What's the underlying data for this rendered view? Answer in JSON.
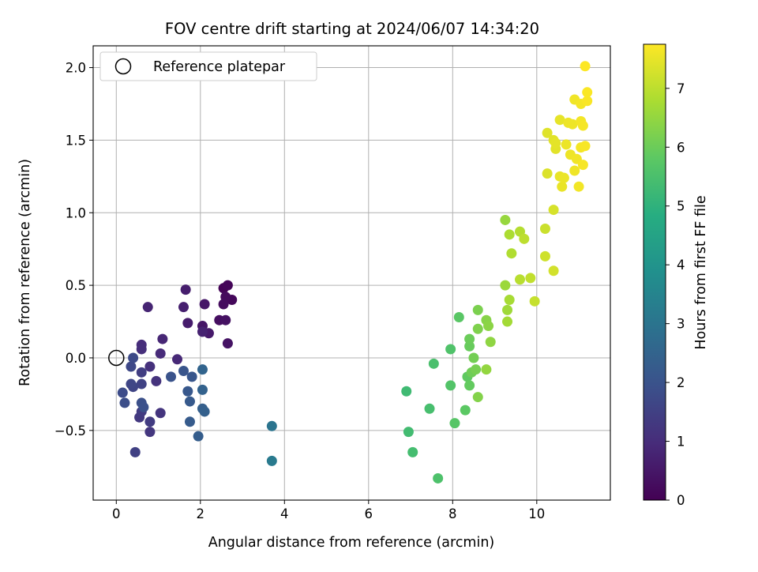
{
  "chart_data": {
    "type": "scatter",
    "title": "FOV centre drift starting at 2024/06/07 14:34:20",
    "xlabel": "Angular distance from reference (arcmin)",
    "ylabel": "Rotation from reference (arcmin)",
    "xlim": [
      -0.55,
      11.75
    ],
    "ylim": [
      -0.98,
      2.15
    ],
    "xticks": [
      0,
      2,
      4,
      6,
      8,
      10
    ],
    "xtick_labels": [
      "0",
      "2",
      "4",
      "6",
      "8",
      "10"
    ],
    "yticks": [
      -0.5,
      0.0,
      0.5,
      1.0,
      1.5,
      2.0
    ],
    "ytick_labels": [
      "−0.5",
      "0.0",
      "0.5",
      "1.0",
      "1.5",
      "2.0"
    ],
    "grid": true,
    "legend": {
      "position": "top-left",
      "label": "Reference platepar",
      "marker": "open-circle"
    },
    "reference_point": {
      "x": 0,
      "y": 0
    },
    "colorbar": {
      "label": "Hours from first FF file",
      "colormap": "viridis",
      "range": [
        0,
        7.75
      ],
      "ticks": [
        0,
        1,
        2,
        3,
        4,
        5,
        6,
        7
      ],
      "tick_labels": [
        "0",
        "1",
        "2",
        "3",
        "4",
        "5",
        "6",
        "7"
      ]
    },
    "points": [
      {
        "x": 2.55,
        "y": 0.48,
        "c": 0.05
      },
      {
        "x": 2.65,
        "y": 0.5,
        "c": 0.1
      },
      {
        "x": 2.75,
        "y": 0.4,
        "c": 0.15
      },
      {
        "x": 2.6,
        "y": 0.42,
        "c": 0.2
      },
      {
        "x": 2.55,
        "y": 0.37,
        "c": 0.25
      },
      {
        "x": 2.45,
        "y": 0.26,
        "c": 0.3
      },
      {
        "x": 2.6,
        "y": 0.26,
        "c": 0.35
      },
      {
        "x": 2.65,
        "y": 0.1,
        "c": 0.4
      },
      {
        "x": 2.05,
        "y": 0.22,
        "c": 0.45
      },
      {
        "x": 2.1,
        "y": 0.37,
        "c": 0.5
      },
      {
        "x": 2.2,
        "y": 0.17,
        "c": 0.55
      },
      {
        "x": 1.7,
        "y": 0.24,
        "c": 0.6
      },
      {
        "x": 1.65,
        "y": 0.47,
        "c": 0.65
      },
      {
        "x": 1.6,
        "y": 0.35,
        "c": 0.7
      },
      {
        "x": 2.05,
        "y": 0.18,
        "c": 0.75
      },
      {
        "x": 0.75,
        "y": 0.35,
        "c": 0.8
      },
      {
        "x": 1.1,
        "y": 0.13,
        "c": 0.85
      },
      {
        "x": 1.45,
        "y": -0.01,
        "c": 0.9
      },
      {
        "x": 1.05,
        "y": 0.03,
        "c": 0.95
      },
      {
        "x": 0.6,
        "y": 0.09,
        "c": 1.0
      },
      {
        "x": 0.6,
        "y": 0.06,
        "c": 1.05
      },
      {
        "x": 0.8,
        "y": -0.06,
        "c": 1.1
      },
      {
        "x": 0.95,
        "y": -0.16,
        "c": 1.15
      },
      {
        "x": 1.05,
        "y": -0.38,
        "c": 1.2
      },
      {
        "x": 0.8,
        "y": -0.51,
        "c": 1.25
      },
      {
        "x": 0.55,
        "y": -0.41,
        "c": 1.3
      },
      {
        "x": 0.6,
        "y": -0.37,
        "c": 1.35
      },
      {
        "x": 0.8,
        "y": -0.44,
        "c": 1.4
      },
      {
        "x": 0.6,
        "y": -0.1,
        "c": 1.45
      },
      {
        "x": 0.45,
        "y": -0.65,
        "c": 1.5
      },
      {
        "x": 0.6,
        "y": -0.18,
        "c": 1.55
      },
      {
        "x": 0.4,
        "y": -0.2,
        "c": 1.6
      },
      {
        "x": 0.35,
        "y": -0.18,
        "c": 1.65
      },
      {
        "x": 0.35,
        "y": -0.06,
        "c": 1.7
      },
      {
        "x": 0.4,
        "y": 0.0,
        "c": 1.75
      },
      {
        "x": 0.15,
        "y": -0.24,
        "c": 1.8
      },
      {
        "x": 0.2,
        "y": -0.31,
        "c": 1.85
      },
      {
        "x": 0.6,
        "y": -0.31,
        "c": 1.9
      },
      {
        "x": 0.65,
        "y": -0.34,
        "c": 1.95
      },
      {
        "x": 1.3,
        "y": -0.13,
        "c": 2.0
      },
      {
        "x": 1.6,
        "y": -0.09,
        "c": 2.05
      },
      {
        "x": 1.8,
        "y": -0.13,
        "c": 2.1
      },
      {
        "x": 1.7,
        "y": -0.23,
        "c": 2.15
      },
      {
        "x": 1.75,
        "y": -0.3,
        "c": 2.2
      },
      {
        "x": 1.75,
        "y": -0.44,
        "c": 2.25
      },
      {
        "x": 1.95,
        "y": -0.54,
        "c": 2.3
      },
      {
        "x": 2.05,
        "y": -0.35,
        "c": 2.35
      },
      {
        "x": 2.1,
        "y": -0.37,
        "c": 2.4
      },
      {
        "x": 2.05,
        "y": -0.22,
        "c": 2.45
      },
      {
        "x": 2.05,
        "y": -0.08,
        "c": 2.5
      },
      {
        "x": 3.7,
        "y": -0.47,
        "c": 3.0
      },
      {
        "x": 3.7,
        "y": -0.71,
        "c": 3.2
      },
      {
        "x": 6.9,
        "y": -0.23,
        "c": 5.3
      },
      {
        "x": 6.95,
        "y": -0.51,
        "c": 5.35
      },
      {
        "x": 7.05,
        "y": -0.65,
        "c": 5.4
      },
      {
        "x": 7.45,
        "y": -0.35,
        "c": 5.45
      },
      {
        "x": 7.55,
        "y": -0.04,
        "c": 5.5
      },
      {
        "x": 7.65,
        "y": -0.83,
        "c": 5.55
      },
      {
        "x": 7.95,
        "y": 0.06,
        "c": 5.6
      },
      {
        "x": 7.95,
        "y": -0.19,
        "c": 5.65
      },
      {
        "x": 8.05,
        "y": -0.45,
        "c": 5.7
      },
      {
        "x": 8.15,
        "y": 0.28,
        "c": 5.75
      },
      {
        "x": 8.3,
        "y": -0.36,
        "c": 5.8
      },
      {
        "x": 8.35,
        "y": -0.13,
        "c": 5.85
      },
      {
        "x": 8.4,
        "y": -0.19,
        "c": 5.9
      },
      {
        "x": 8.4,
        "y": 0.08,
        "c": 5.95
      },
      {
        "x": 8.4,
        "y": 0.13,
        "c": 6.0
      },
      {
        "x": 8.45,
        "y": -0.1,
        "c": 6.05
      },
      {
        "x": 8.5,
        "y": 0.0,
        "c": 6.1
      },
      {
        "x": 8.55,
        "y": -0.08,
        "c": 6.15
      },
      {
        "x": 8.6,
        "y": 0.33,
        "c": 6.2
      },
      {
        "x": 8.6,
        "y": 0.2,
        "c": 6.25
      },
      {
        "x": 8.6,
        "y": -0.27,
        "c": 6.3
      },
      {
        "x": 8.8,
        "y": 0.26,
        "c": 6.35
      },
      {
        "x": 8.85,
        "y": 0.22,
        "c": 6.4
      },
      {
        "x": 8.9,
        "y": 0.11,
        "c": 6.45
      },
      {
        "x": 8.8,
        "y": -0.08,
        "c": 6.5
      },
      {
        "x": 9.25,
        "y": 0.95,
        "c": 6.55
      },
      {
        "x": 9.25,
        "y": 0.5,
        "c": 6.6
      },
      {
        "x": 9.3,
        "y": 0.33,
        "c": 6.65
      },
      {
        "x": 9.3,
        "y": 0.25,
        "c": 6.7
      },
      {
        "x": 9.35,
        "y": 0.4,
        "c": 6.75
      },
      {
        "x": 9.35,
        "y": 0.85,
        "c": 6.8
      },
      {
        "x": 9.4,
        "y": 0.72,
        "c": 6.85
      },
      {
        "x": 9.6,
        "y": 0.87,
        "c": 6.9
      },
      {
        "x": 9.6,
        "y": 0.54,
        "c": 6.95
      },
      {
        "x": 9.7,
        "y": 0.82,
        "c": 7.0
      },
      {
        "x": 9.85,
        "y": 0.55,
        "c": 7.05
      },
      {
        "x": 9.95,
        "y": 0.39,
        "c": 7.1
      },
      {
        "x": 10.2,
        "y": 0.89,
        "c": 7.15
      },
      {
        "x": 10.2,
        "y": 0.7,
        "c": 7.2
      },
      {
        "x": 10.4,
        "y": 0.6,
        "c": 7.25
      },
      {
        "x": 10.4,
        "y": 1.02,
        "c": 7.3
      },
      {
        "x": 10.25,
        "y": 1.27,
        "c": 7.35
      },
      {
        "x": 10.25,
        "y": 1.55,
        "c": 7.4
      },
      {
        "x": 10.4,
        "y": 1.5,
        "c": 7.42
      },
      {
        "x": 10.45,
        "y": 1.44,
        "c": 7.44
      },
      {
        "x": 10.45,
        "y": 1.48,
        "c": 7.46
      },
      {
        "x": 10.55,
        "y": 1.64,
        "c": 7.48
      },
      {
        "x": 10.55,
        "y": 1.25,
        "c": 7.5
      },
      {
        "x": 10.6,
        "y": 1.18,
        "c": 7.52
      },
      {
        "x": 10.65,
        "y": 1.24,
        "c": 7.54
      },
      {
        "x": 10.7,
        "y": 1.47,
        "c": 7.55
      },
      {
        "x": 10.75,
        "y": 1.62,
        "c": 7.56
      },
      {
        "x": 10.8,
        "y": 1.4,
        "c": 7.57
      },
      {
        "x": 10.85,
        "y": 1.61,
        "c": 7.58
      },
      {
        "x": 10.9,
        "y": 1.29,
        "c": 7.59
      },
      {
        "x": 10.9,
        "y": 1.78,
        "c": 7.6
      },
      {
        "x": 10.95,
        "y": 1.37,
        "c": 7.61
      },
      {
        "x": 11.0,
        "y": 1.18,
        "c": 7.62
      },
      {
        "x": 11.05,
        "y": 1.63,
        "c": 7.63
      },
      {
        "x": 11.05,
        "y": 1.75,
        "c": 7.64
      },
      {
        "x": 11.05,
        "y": 1.45,
        "c": 7.65
      },
      {
        "x": 11.1,
        "y": 1.6,
        "c": 7.66
      },
      {
        "x": 11.1,
        "y": 1.33,
        "c": 7.67
      },
      {
        "x": 11.15,
        "y": 1.46,
        "c": 7.68
      },
      {
        "x": 11.2,
        "y": 1.77,
        "c": 7.7
      },
      {
        "x": 11.2,
        "y": 1.83,
        "c": 7.72
      },
      {
        "x": 11.15,
        "y": 2.01,
        "c": 7.74
      }
    ]
  }
}
